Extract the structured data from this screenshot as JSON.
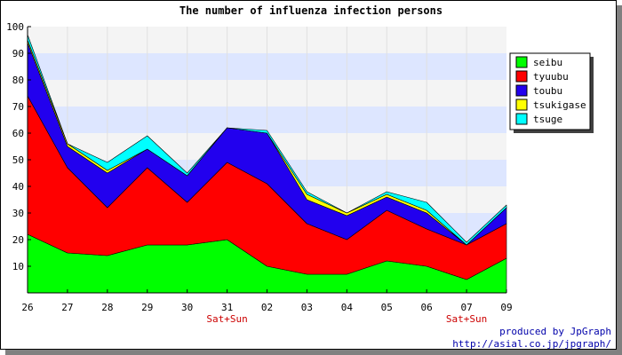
{
  "chart_data": {
    "type": "area",
    "stacked": true,
    "title": "The number of influenza infection persons",
    "categories": [
      "26",
      "27",
      "28",
      "29",
      "30",
      "31",
      "02",
      "03",
      "04",
      "05",
      "06",
      "07",
      "09"
    ],
    "weekend_labels": [
      "",
      "",
      "",
      "",
      "",
      "Sat+Sun",
      "",
      "",
      "",
      "",
      "",
      "Sat+Sun",
      ""
    ],
    "ylim": [
      0,
      100
    ],
    "yticks": [
      10,
      20,
      30,
      40,
      50,
      60,
      70,
      80,
      90,
      100
    ],
    "grid": true,
    "legend_position": "right",
    "series": [
      {
        "name": "seibu",
        "color": "#00ff00",
        "values": [
          22,
          15,
          14,
          18,
          18,
          20,
          10,
          7,
          7,
          12,
          10,
          5,
          13
        ]
      },
      {
        "name": "tyuubu",
        "color": "#ff0000",
        "values": [
          52,
          32,
          18,
          29,
          16,
          29,
          31,
          19,
          13,
          19,
          14,
          13,
          13
        ]
      },
      {
        "name": "toubu",
        "color": "#2200ee",
        "values": [
          20,
          8,
          13,
          7,
          10,
          13,
          19,
          9,
          9,
          5,
          6,
          0,
          6
        ]
      },
      {
        "name": "tsukigase",
        "color": "#ffff00",
        "values": [
          1,
          1,
          1,
          0,
          0,
          0,
          0,
          2,
          1,
          1,
          1,
          0,
          0
        ]
      },
      {
        "name": "tsuge",
        "color": "#00ffff",
        "values": [
          2,
          0,
          3,
          5,
          1,
          0,
          1,
          1,
          0,
          1,
          3,
          1,
          1
        ]
      }
    ]
  },
  "credit": {
    "line1": "produced by JpGraph",
    "line2": "http://asial.co.jp/jpgraph/"
  }
}
